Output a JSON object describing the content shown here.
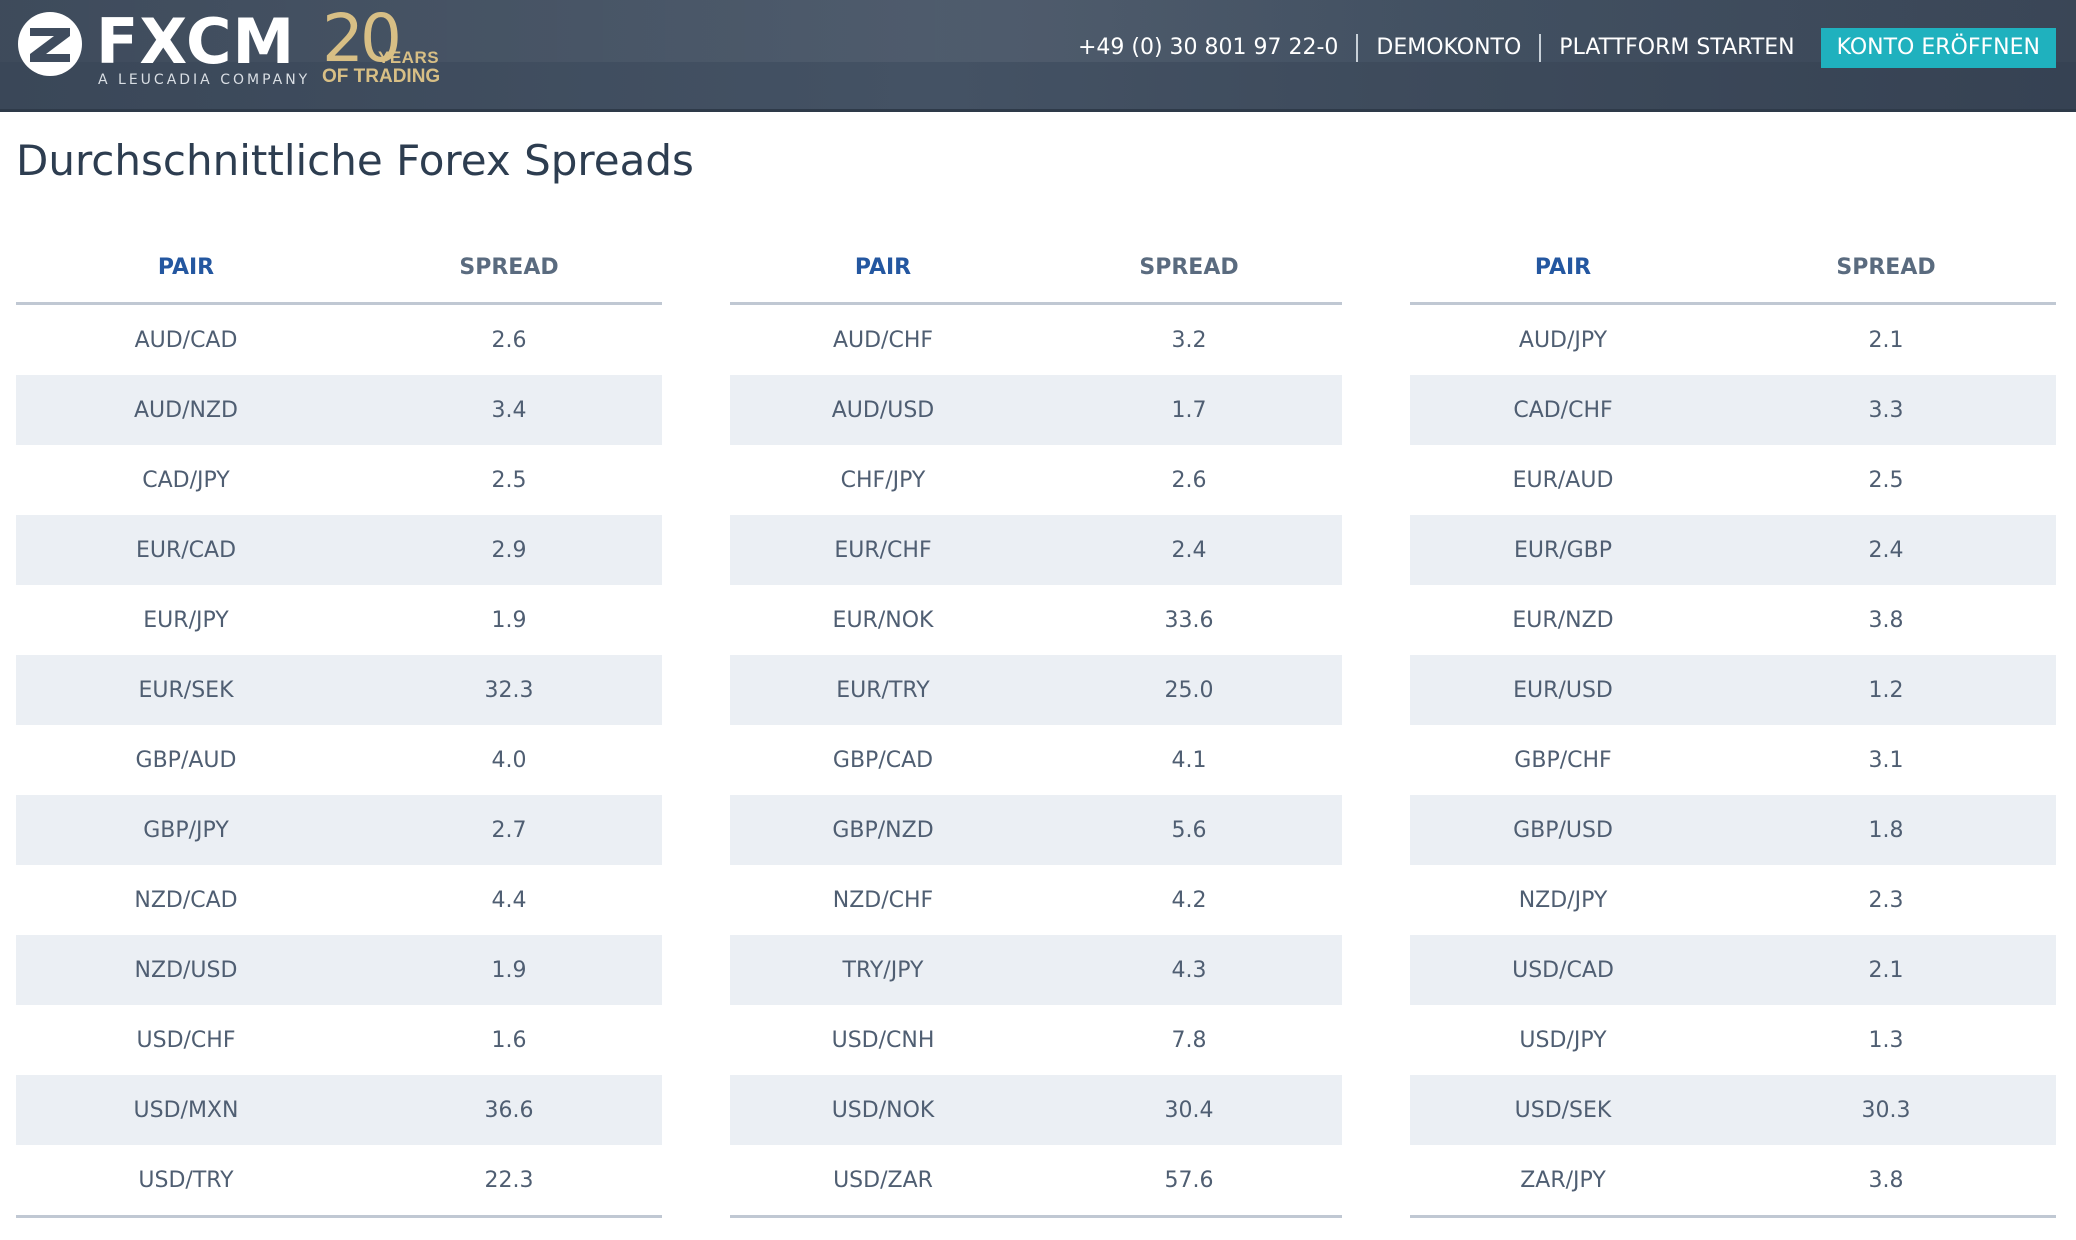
{
  "header": {
    "brand": "FXCM",
    "brand_sub": "A LEUCADIA COMPANY",
    "anniversary_number": "20",
    "anniversary_years": "YEARS",
    "anniversary_trading": "OF TRADING",
    "phone": "+49 (0) 30 801 97 22-0",
    "demo_label": "DEMOKONTO",
    "platform_label": "PLATTFORM STARTEN",
    "cta_label": "KONTO ERÖFFNEN",
    "colors": {
      "cta": "#1fb1be",
      "bar": "#3f4c5e",
      "gold": "#d8bf85"
    }
  },
  "page": {
    "title": "Durchschnittliche Forex Spreads"
  },
  "tables": [
    {
      "col_pair": "PAIR",
      "col_spread": "SPREAD",
      "rows": [
        {
          "pair": "AUD/CAD",
          "spread": "2.6"
        },
        {
          "pair": "AUD/NZD",
          "spread": "3.4"
        },
        {
          "pair": "CAD/JPY",
          "spread": "2.5"
        },
        {
          "pair": "EUR/CAD",
          "spread": "2.9"
        },
        {
          "pair": "EUR/JPY",
          "spread": "1.9"
        },
        {
          "pair": "EUR/SEK",
          "spread": "32.3"
        },
        {
          "pair": "GBP/AUD",
          "spread": "4.0"
        },
        {
          "pair": "GBP/JPY",
          "spread": "2.7"
        },
        {
          "pair": "NZD/CAD",
          "spread": "4.4"
        },
        {
          "pair": "NZD/USD",
          "spread": "1.9"
        },
        {
          "pair": "USD/CHF",
          "spread": "1.6"
        },
        {
          "pair": "USD/MXN",
          "spread": "36.6"
        },
        {
          "pair": "USD/TRY",
          "spread": "22.3"
        }
      ]
    },
    {
      "col_pair": "PAIR",
      "col_spread": "SPREAD",
      "rows": [
        {
          "pair": "AUD/CHF",
          "spread": "3.2"
        },
        {
          "pair": "AUD/USD",
          "spread": "1.7"
        },
        {
          "pair": "CHF/JPY",
          "spread": "2.6"
        },
        {
          "pair": "EUR/CHF",
          "spread": "2.4"
        },
        {
          "pair": "EUR/NOK",
          "spread": "33.6"
        },
        {
          "pair": "EUR/TRY",
          "spread": "25.0"
        },
        {
          "pair": "GBP/CAD",
          "spread": "4.1"
        },
        {
          "pair": "GBP/NZD",
          "spread": "5.6"
        },
        {
          "pair": "NZD/CHF",
          "spread": "4.2"
        },
        {
          "pair": "TRY/JPY",
          "spread": "4.3"
        },
        {
          "pair": "USD/CNH",
          "spread": "7.8"
        },
        {
          "pair": "USD/NOK",
          "spread": "30.4"
        },
        {
          "pair": "USD/ZAR",
          "spread": "57.6"
        }
      ]
    },
    {
      "col_pair": "PAIR",
      "col_spread": "SPREAD",
      "rows": [
        {
          "pair": "AUD/JPY",
          "spread": "2.1"
        },
        {
          "pair": "CAD/CHF",
          "spread": "3.3"
        },
        {
          "pair": "EUR/AUD",
          "spread": "2.5"
        },
        {
          "pair": "EUR/GBP",
          "spread": "2.4"
        },
        {
          "pair": "EUR/NZD",
          "spread": "3.8"
        },
        {
          "pair": "EUR/USD",
          "spread": "1.2"
        },
        {
          "pair": "GBP/CHF",
          "spread": "3.1"
        },
        {
          "pair": "GBP/USD",
          "spread": "1.8"
        },
        {
          "pair": "NZD/JPY",
          "spread": "2.3"
        },
        {
          "pair": "USD/CAD",
          "spread": "2.1"
        },
        {
          "pair": "USD/JPY",
          "spread": "1.3"
        },
        {
          "pair": "USD/SEK",
          "spread": "30.3"
        },
        {
          "pair": "ZAR/JPY",
          "spread": "3.8"
        }
      ]
    }
  ]
}
